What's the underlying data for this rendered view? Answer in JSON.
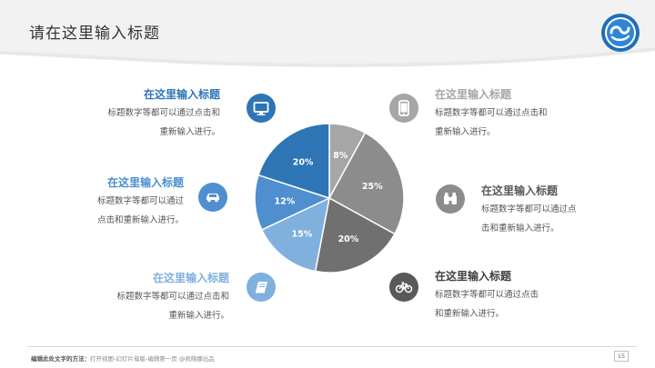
{
  "slide": {
    "title": "请在这里输入标题",
    "page_number": "15"
  },
  "pie": {
    "segments": [
      {
        "value": 8,
        "label": "8%",
        "color": "#a6a6a6"
      },
      {
        "value": 25,
        "label": "25%",
        "color": "#8c8c8c"
      },
      {
        "value": 20,
        "label": "20%",
        "color": "#707070"
      },
      {
        "value": 15,
        "label": "15%",
        "color": "#7fb0de"
      },
      {
        "value": 12,
        "label": "12%",
        "color": "#4f8fd0"
      },
      {
        "value": 20,
        "label": "20%",
        "color": "#2e75b6"
      }
    ]
  },
  "blocks": {
    "top_left": {
      "title": "在这里输入标题",
      "line1": "标题数字等都可以通过点击和",
      "line2": "重新输入进行。",
      "icon": "monitor-icon",
      "color": "#2e75b6"
    },
    "mid_left": {
      "title": "在这里输入标题",
      "line1": "标题数字等都可以通过",
      "line2": "点击和重新输入进行。",
      "icon": "car-icon",
      "color": "#4f8fd0"
    },
    "bottom_left": {
      "title": "在这里输入标题",
      "line1": "标题数字等都可以通过点击和",
      "line2": "重新输入进行。",
      "icon": "book-icon",
      "color": "#7fb0de"
    },
    "top_right": {
      "title": "在这里输入标题",
      "line1": "标题数字等都可以通过点击和",
      "line2": "重新输入进行。",
      "icon": "phone-icon",
      "color": "#a6a6a6"
    },
    "mid_right": {
      "title": "在这里输入标题",
      "line1": "标题数字等都可以通过点",
      "line2": "击和重新输入进行。",
      "icon": "binoculars-icon",
      "color": "#8c8c8c"
    },
    "bottom_right": {
      "title": "在这里输入标题",
      "line1": "标题数字等都可以通过点击",
      "line2": "和重新输入进行。",
      "icon": "bicycle-icon",
      "color": "#595959"
    }
  },
  "footer": {
    "label": "编辑此处文字的方法：",
    "text": "打开视图-幻灯片母版-编辑第一页 @祝晓娜出品"
  }
}
